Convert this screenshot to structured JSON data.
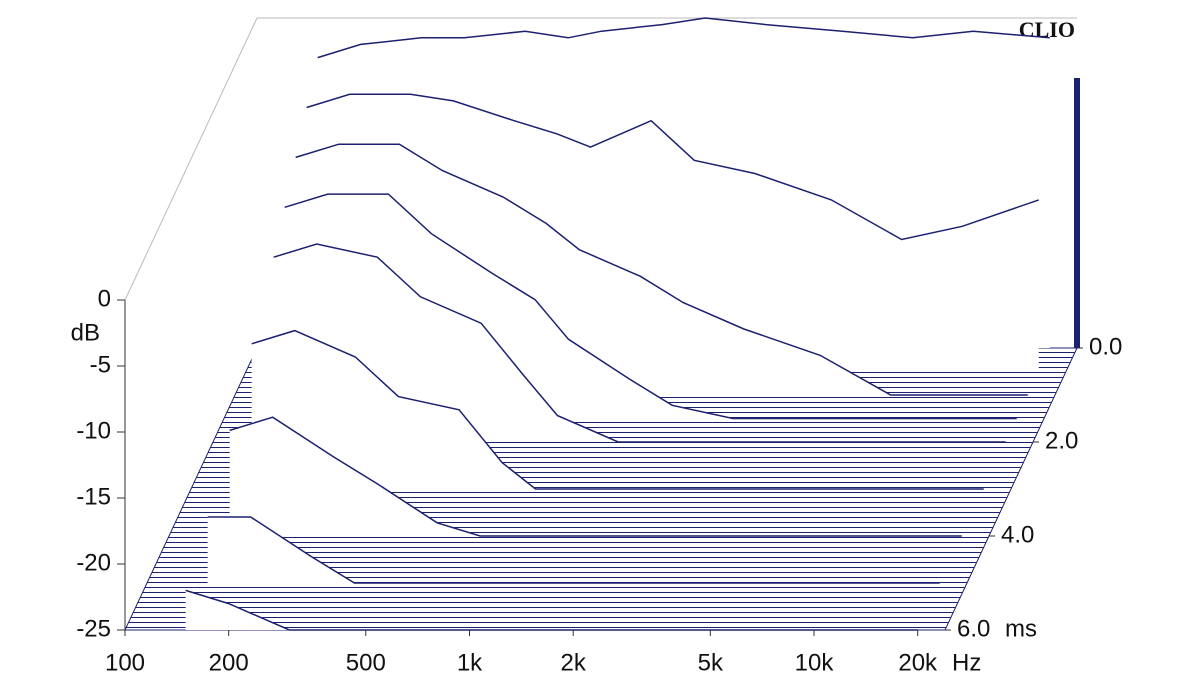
{
  "chart_data": {
    "type": "waterfall",
    "brand": "CLIO",
    "xlabel": "Hz",
    "ylabel": "dB",
    "zlabel": "ms",
    "x": [
      150,
      200,
      300,
      400,
      600,
      800,
      1000,
      1500,
      2000,
      3000,
      5000,
      8000,
      12000,
      20000
    ],
    "slices": [
      {
        "time": 0,
        "values": [
          -3,
          -2,
          -1.5,
          -1.5,
          -1,
          -1.5,
          -1,
          -0.5,
          0,
          -0.5,
          -1,
          -1.5,
          -1,
          -1.5
        ]
      },
      {
        "time": 0.5,
        "values": [
          -5,
          -4,
          -4,
          -4.5,
          -6,
          -7,
          -8,
          -6,
          -9,
          -10,
          -12,
          -15,
          -14,
          -12
        ]
      },
      {
        "time": 1,
        "values": [
          -7,
          -6,
          -6,
          -8,
          -10,
          -12,
          -14,
          -16,
          -18,
          -20,
          -22,
          -25,
          -25,
          -25
        ]
      },
      {
        "time": 1.5,
        "values": [
          -9,
          -8,
          -8,
          -11,
          -14,
          -16,
          -19,
          -22,
          -24,
          -25,
          -25,
          -25,
          -25,
          -25
        ]
      },
      {
        "time": 2,
        "values": [
          -11,
          -10,
          -11,
          -14,
          -16,
          -20,
          -23,
          -25,
          -25,
          -25,
          -25,
          -25,
          -25,
          -25
        ]
      },
      {
        "time": 3,
        "values": [
          -14,
          -13,
          -15,
          -18,
          -19,
          -23,
          -25,
          -25,
          -25,
          -25,
          -25,
          -25,
          -25,
          -25
        ]
      },
      {
        "time": 4,
        "values": [
          -17,
          -16,
          -19,
          -21,
          -24,
          -25,
          -25,
          -25,
          -25,
          -25,
          -25,
          -25,
          -25,
          -25
        ]
      },
      {
        "time": 5,
        "values": [
          -20,
          -20,
          -23,
          -25,
          -25,
          -25,
          -25,
          -25,
          -25,
          -25,
          -25,
          -25,
          -25,
          -25
        ]
      },
      {
        "time": 6,
        "values": [
          -22,
          -23,
          -25,
          -25,
          -25,
          -25,
          -25,
          -25,
          -25,
          -25,
          -25,
          -25,
          -25,
          -25
        ]
      }
    ],
    "xlim": [
      100,
      24000
    ],
    "log_x": true,
    "xticks": [
      100,
      200,
      500,
      {
        "value": 1000,
        "label": "1k"
      },
      {
        "value": 2000,
        "label": "2k"
      },
      {
        "value": 5000,
        "label": "5k"
      },
      {
        "value": 10000,
        "label": "10k"
      },
      {
        "value": 20000,
        "label": "20k"
      }
    ],
    "ylim": [
      -25,
      0
    ],
    "yticks": [
      0,
      -5,
      -10,
      -15,
      -20,
      -25
    ],
    "zlim": [
      0,
      6
    ],
    "zticks": [
      {
        "value": 0,
        "label": "0.0"
      },
      {
        "value": 2,
        "label": "2.0"
      },
      {
        "value": 4,
        "label": "4.0"
      },
      {
        "value": 6,
        "label": "6.0"
      }
    ],
    "color": "#1c2070"
  }
}
